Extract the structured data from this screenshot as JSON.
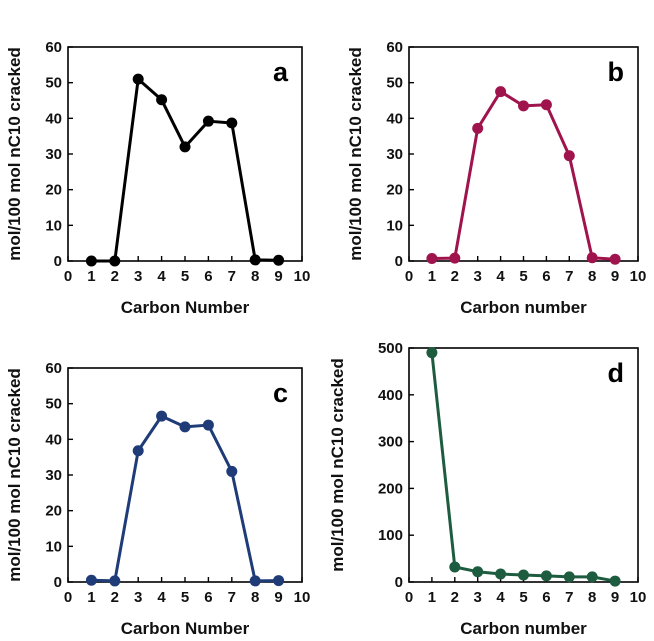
{
  "chart_data": [
    {
      "type": "line",
      "panel_label": "a",
      "xlabel": "Carbon Number",
      "ylabel": "mol/100 mol nC10 cracked",
      "xlim": [
        0,
        10
      ],
      "ylim": [
        0,
        60
      ],
      "xticks": [
        0,
        1,
        2,
        3,
        4,
        5,
        6,
        7,
        8,
        9,
        10
      ],
      "yticks": [
        0,
        10,
        20,
        30,
        40,
        50,
        60
      ],
      "color": "#000000",
      "series": [
        {
          "x": [
            1,
            2,
            3,
            4,
            5,
            6,
            7,
            8,
            9
          ],
          "y": [
            0,
            0,
            51,
            45.2,
            32,
            39.2,
            38.7,
            0.3,
            0.2
          ]
        }
      ]
    },
    {
      "type": "line",
      "panel_label": "b",
      "xlabel": "Carbon number",
      "ylabel": "mol/100 mol nC10 cracked",
      "xlim": [
        0,
        10
      ],
      "ylim": [
        0,
        60
      ],
      "xticks": [
        0,
        1,
        2,
        3,
        4,
        5,
        6,
        7,
        8,
        9,
        10
      ],
      "yticks": [
        0,
        10,
        20,
        30,
        40,
        50,
        60
      ],
      "color": "#a0144d",
      "series": [
        {
          "x": [
            1,
            2,
            3,
            4,
            5,
            6,
            7,
            8,
            9
          ],
          "y": [
            0.7,
            0.8,
            37.2,
            47.5,
            43.5,
            43.8,
            29.5,
            0.9,
            0.5
          ]
        }
      ]
    },
    {
      "type": "line",
      "panel_label": "c",
      "xlabel": "Carbon Number",
      "ylabel": "mol/100 mol nC10 cracked",
      "xlim": [
        0,
        10
      ],
      "ylim": [
        0,
        60
      ],
      "xticks": [
        0,
        1,
        2,
        3,
        4,
        5,
        6,
        7,
        8,
        9,
        10
      ],
      "yticks": [
        0,
        10,
        20,
        30,
        40,
        50,
        60
      ],
      "color": "#1f3c78",
      "series": [
        {
          "x": [
            1,
            2,
            3,
            4,
            5,
            6,
            7,
            8,
            9
          ],
          "y": [
            0.5,
            0.3,
            36.8,
            46.5,
            43.5,
            44,
            31,
            0.3,
            0.4
          ]
        }
      ]
    },
    {
      "type": "line",
      "panel_label": "d",
      "xlabel": "Carbon number",
      "ylabel": "mol/100 mol nC10 cracked",
      "xlim": [
        0,
        10
      ],
      "ylim": [
        0,
        500
      ],
      "xticks": [
        0,
        1,
        2,
        3,
        4,
        5,
        6,
        7,
        8,
        9,
        10
      ],
      "yticks": [
        0,
        100,
        200,
        300,
        400,
        500
      ],
      "color": "#1e5c40",
      "series": [
        {
          "x": [
            1,
            2,
            3,
            4,
            5,
            6,
            7,
            8,
            9
          ],
          "y": [
            490,
            32,
            22,
            17,
            15,
            13,
            11,
            11,
            2
          ]
        }
      ]
    }
  ]
}
